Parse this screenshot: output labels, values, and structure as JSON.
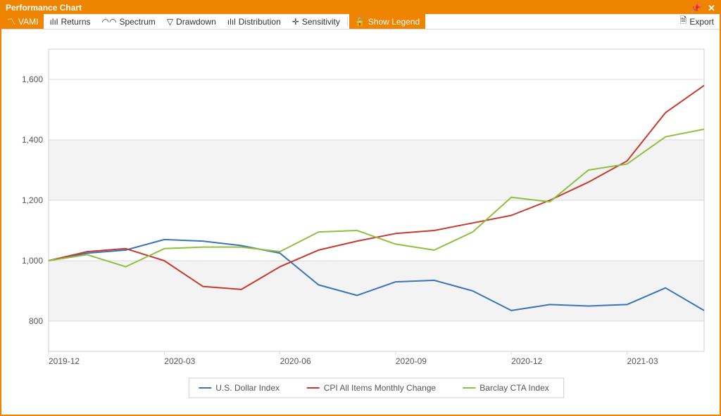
{
  "window": {
    "title": "Performance Chart"
  },
  "titlebar_icons": {
    "pin": "📌",
    "close": "✕"
  },
  "toolbar": {
    "vami": {
      "label": "VAMI",
      "icon": "〽"
    },
    "returns": {
      "label": "Returns",
      "icon": "ılıl"
    },
    "spectrum": {
      "label": "Spectrum",
      "icon": "◠◠"
    },
    "drawdown": {
      "label": "Drawdown",
      "icon": "▽"
    },
    "distribution": {
      "label": "Distribution",
      "icon": "ılıl"
    },
    "sensitivity": {
      "label": "Sensitivity",
      "icon": "✛"
    },
    "showlegend": {
      "label": "Show Legend",
      "icon": "🔒"
    },
    "export": {
      "label": "Export",
      "icon": "🗎"
    }
  },
  "chart": {
    "type": "line",
    "background_color": "#ffffff",
    "plot_border_color": "#cfcfcf",
    "grid_color": "#d9d9d9",
    "band_color": "#f3f3f3",
    "axis_label_color": "#555555",
    "axis_font_size": 12,
    "line_width": 2,
    "ylim": [
      700,
      1700
    ],
    "yticks": [
      800,
      1000,
      1200,
      1400,
      1600
    ],
    "ytick_labels": [
      "800",
      "1,000",
      "1,200",
      "1,400",
      "1,600"
    ],
    "x_count": 18,
    "xtick_indices": [
      0,
      3,
      6,
      9,
      12,
      15
    ],
    "xtick_labels": [
      "2019-12",
      "2020-03",
      "2020-06",
      "2020-09",
      "2020-12",
      "2021-03"
    ],
    "series": [
      {
        "name": "U.S. Dollar Index",
        "color": "#3b73b9",
        "values": [
          1000,
          1025,
          1035,
          1070,
          1065,
          1050,
          1025,
          920,
          885,
          930,
          935,
          900,
          835,
          855,
          850,
          855,
          910,
          835
        ]
      },
      {
        "name": "CPI All Items Monthly Change",
        "color": "#c63b2f",
        "values": [
          1000,
          1030,
          1040,
          1000,
          915,
          905,
          980,
          1035,
          1065,
          1090,
          1100,
          1125,
          1150,
          1200,
          1260,
          1330,
          1490,
          1580
        ]
      },
      {
        "name": "Barclay CTA Index",
        "color": "#8fbf3f",
        "values": [
          1000,
          1020,
          980,
          1040,
          1045,
          1045,
          1030,
          1095,
          1100,
          1055,
          1035,
          1095,
          1210,
          1195,
          1300,
          1320,
          1410,
          1435
        ]
      }
    ]
  }
}
